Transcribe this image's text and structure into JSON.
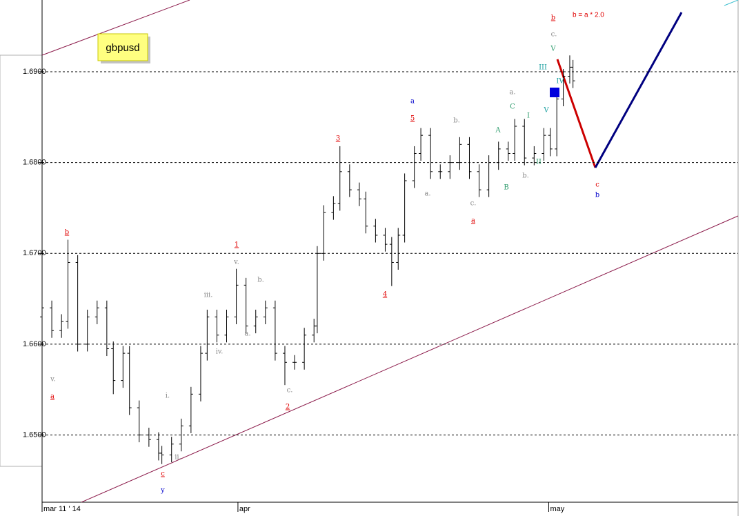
{
  "chart_data": {
    "type": "ohlc",
    "symbol": "gbpusd",
    "note": "b = a * 2.0",
    "note_color": "#e00000",
    "color": "#000000",
    "grid": true,
    "xlim": [
      0,
      215
    ],
    "xticks": [
      {
        "value": 0,
        "label": "mar 11 ' 14"
      },
      {
        "value": 60.5,
        "label": "apr"
      },
      {
        "value": 156.5,
        "label": "may"
      }
    ],
    "ylim": [
      1.6426,
      1.6979
    ],
    "yticks": [
      {
        "value": 1.65,
        "label": "1.6500"
      },
      {
        "value": 1.66,
        "label": "1.6600"
      },
      {
        "value": 1.67,
        "label": "1.6700"
      },
      {
        "value": 1.68,
        "label": "1.6800"
      },
      {
        "value": 1.69,
        "label": "1.6900"
      }
    ],
    "x": [
      0,
      3,
      6,
      8,
      11,
      14,
      17,
      20,
      22,
      25,
      27,
      30,
      33,
      36,
      37,
      40,
      43,
      46,
      49,
      51,
      54,
      57,
      60,
      63,
      66,
      69,
      72,
      75,
      78,
      81,
      84,
      85,
      87,
      90,
      92,
      95,
      98,
      100,
      103,
      106,
      108,
      110,
      112,
      115,
      117,
      120,
      123,
      126,
      129,
      132,
      135,
      138,
      141,
      144,
      146,
      149,
      152,
      155,
      157,
      159,
      161,
      163,
      164
    ],
    "open": [
      1.663,
      1.664,
      1.6615,
      1.6625,
      1.669,
      1.66,
      1.663,
      1.664,
      1.6595,
      1.656,
      1.659,
      1.653,
      1.65,
      1.6495,
      1.648,
      1.6478,
      1.649,
      1.651,
      1.6545,
      1.659,
      1.663,
      1.661,
      1.663,
      1.6665,
      1.662,
      1.663,
      1.664,
      1.659,
      1.658,
      1.658,
      1.661,
      1.662,
      1.67,
      1.6745,
      1.6755,
      1.679,
      1.677,
      1.676,
      1.673,
      1.672,
      1.671,
      1.669,
      1.672,
      1.678,
      1.681,
      1.683,
      1.679,
      1.679,
      1.68,
      1.682,
      1.679,
      1.677,
      1.68,
      1.6815,
      1.681,
      1.684,
      1.6805,
      1.681,
      1.683,
      1.6815,
      1.687,
      1.6895,
      1.6905
    ],
    "high": [
      1.6648,
      1.6648,
      1.6633,
      1.6715,
      1.6698,
      1.6638,
      1.6648,
      1.6648,
      1.6603,
      1.6598,
      1.6598,
      1.6538,
      1.6508,
      1.6503,
      1.6488,
      1.6498,
      1.6518,
      1.6553,
      1.6598,
      1.6638,
      1.6638,
      1.6638,
      1.6683,
      1.6673,
      1.6638,
      1.6648,
      1.6648,
      1.6598,
      1.6588,
      1.6618,
      1.6628,
      1.6708,
      1.6753,
      1.6763,
      1.6818,
      1.6798,
      1.6778,
      1.6768,
      1.6738,
      1.6728,
      1.6718,
      1.6728,
      1.6788,
      1.6818,
      1.6838,
      1.6838,
      1.6798,
      1.6808,
      1.6828,
      1.6828,
      1.6798,
      1.6808,
      1.6823,
      1.6823,
      1.6848,
      1.6848,
      1.6818,
      1.6838,
      1.6838,
      1.6878,
      1.6903,
      1.6918,
      1.6913
    ],
    "low": [
      1.6622,
      1.6607,
      1.6607,
      1.6617,
      1.6592,
      1.6592,
      1.6622,
      1.6587,
      1.6545,
      1.6552,
      1.6522,
      1.6492,
      1.6487,
      1.6472,
      1.6468,
      1.647,
      1.6482,
      1.6502,
      1.6537,
      1.6582,
      1.6602,
      1.6602,
      1.6622,
      1.6612,
      1.6612,
      1.6622,
      1.6582,
      1.6555,
      1.6572,
      1.6572,
      1.6602,
      1.6612,
      1.6692,
      1.6737,
      1.6747,
      1.6762,
      1.6752,
      1.6722,
      1.6712,
      1.6702,
      1.6664,
      1.6682,
      1.6712,
      1.6772,
      1.6802,
      1.6782,
      1.6782,
      1.6782,
      1.6792,
      1.6782,
      1.6762,
      1.6762,
      1.6792,
      1.6802,
      1.6802,
      1.6797,
      1.6797,
      1.6802,
      1.6807,
      1.6807,
      1.6862,
      1.6887,
      1.6882
    ],
    "close": [
      1.664,
      1.6615,
      1.6625,
      1.669,
      1.66,
      1.663,
      1.664,
      1.6595,
      1.656,
      1.659,
      1.653,
      1.65,
      1.6495,
      1.648,
      1.6478,
      1.649,
      1.651,
      1.6545,
      1.659,
      1.663,
      1.661,
      1.663,
      1.6665,
      1.662,
      1.663,
      1.664,
      1.659,
      1.658,
      1.658,
      1.661,
      1.662,
      1.67,
      1.6745,
      1.6755,
      1.679,
      1.677,
      1.676,
      1.673,
      1.672,
      1.671,
      1.669,
      1.672,
      1.678,
      1.681,
      1.683,
      1.679,
      1.679,
      1.68,
      1.682,
      1.679,
      1.677,
      1.68,
      1.6815,
      1.681,
      1.684,
      1.6805,
      1.681,
      1.683,
      1.6815,
      1.687,
      1.6895,
      1.6905,
      1.689
    ],
    "annotations": [
      {
        "text": "b",
        "color": "#e00000"
      },
      {
        "text": "a",
        "color": "#e00000"
      },
      {
        "text": "v.",
        "color": "#888888"
      },
      {
        "text": "c",
        "color": "#e00000"
      },
      {
        "text": "y",
        "color": "#0000cc"
      },
      {
        "text": "i.",
        "color": "#888888"
      },
      {
        "text": "ii.",
        "color": "#888888"
      },
      {
        "text": "iii.",
        "color": "#888888"
      },
      {
        "text": "iv.",
        "color": "#888888"
      },
      {
        "text": "v.",
        "color": "#888888"
      },
      {
        "text": "1",
        "color": "#e00000"
      },
      {
        "text": "a.",
        "color": "#888888"
      },
      {
        "text": "b.",
        "color": "#888888"
      },
      {
        "text": "2",
        "color": "#e00000"
      },
      {
        "text": "c.",
        "color": "#888888"
      },
      {
        "text": "3",
        "color": "#e00000"
      },
      {
        "text": "4",
        "color": "#e00000"
      },
      {
        "text": "5",
        "color": "#e00000"
      },
      {
        "text": "a",
        "color": "#0000cc"
      },
      {
        "text": "a.",
        "color": "#888888"
      },
      {
        "text": "b.",
        "color": "#888888"
      },
      {
        "text": "c.",
        "color": "#888888"
      },
      {
        "text": "a",
        "color": "#e00000"
      },
      {
        "text": "A",
        "color": "#2a9a6a"
      },
      {
        "text": "B",
        "color": "#2a9a6a"
      },
      {
        "text": "C",
        "color": "#2a9a6a"
      },
      {
        "text": "a.",
        "color": "#888888"
      },
      {
        "text": "b.",
        "color": "#888888"
      },
      {
        "text": "I",
        "color": "#2a9a6a"
      },
      {
        "text": "II",
        "color": "#2a9a6a"
      },
      {
        "text": "III",
        "color": "#1a9fa0"
      },
      {
        "text": "V",
        "color": "#1a9fa0"
      },
      {
        "text": "IV",
        "color": "#1a9fa0"
      },
      {
        "text": "V",
        "color": "#2a9a6a"
      },
      {
        "text": "c.",
        "color": "#888888"
      },
      {
        "text": "b",
        "color": "#e00000"
      },
      {
        "text": "c",
        "color": "#e00000"
      },
      {
        "text": "b",
        "color": "#0000cc"
      }
    ]
  }
}
